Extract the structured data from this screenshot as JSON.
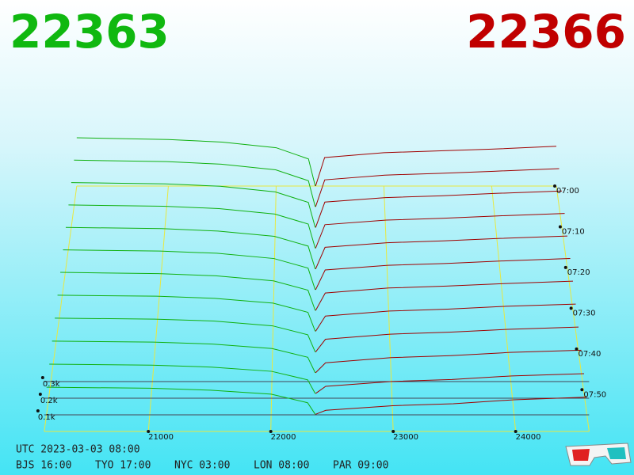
{
  "header": {
    "bid_price": 22363,
    "ask_price": 22366
  },
  "chart_data": {
    "type": "depth3d",
    "bid_color": "#10b010",
    "ask_color": "#a00000",
    "plane_color": "#e8e840",
    "xlim": [
      20150,
      24600
    ],
    "xticks": [
      21000,
      22000,
      23000,
      24000
    ],
    "yticks": [
      {
        "value": 100,
        "label": "0.1k"
      },
      {
        "value": 200,
        "label": "0.2k"
      },
      {
        "value": 300,
        "label": "0.3k"
      }
    ],
    "time_ticks": [
      "07:00",
      "07:10",
      "07:20",
      "07:30",
      "07:40",
      "07:50"
    ],
    "bid_prices": [
      20150,
      21000,
      21500,
      22000,
      22300,
      22363
    ],
    "ask_prices": [
      22366,
      22450,
      23000,
      23500,
      24000,
      24600
    ],
    "snapshots": [
      {
        "bid": [
          330,
          318,
          300,
          262,
          185,
          0
        ],
        "ask": [
          0,
          195,
          228,
          240,
          252,
          272
        ]
      },
      {
        "bid": [
          315,
          305,
          288,
          250,
          176,
          0
        ],
        "ask": [
          0,
          182,
          214,
          226,
          240,
          258
        ]
      },
      {
        "bid": [
          300,
          292,
          276,
          238,
          168,
          0
        ],
        "ask": [
          0,
          170,
          200,
          212,
          228,
          244
        ]
      },
      {
        "bid": [
          286,
          278,
          262,
          226,
          160,
          0
        ],
        "ask": [
          0,
          156,
          186,
          198,
          214,
          230
        ]
      },
      {
        "bid": [
          272,
          264,
          248,
          214,
          150,
          0
        ],
        "ask": [
          0,
          142,
          172,
          184,
          200,
          216
        ]
      },
      {
        "bid": [
          258,
          250,
          236,
          202,
          140,
          0
        ],
        "ask": [
          0,
          128,
          158,
          170,
          186,
          202
        ]
      },
      {
        "bid": [
          244,
          236,
          222,
          190,
          130,
          0
        ],
        "ask": [
          0,
          112,
          144,
          156,
          172,
          188
        ]
      },
      {
        "bid": [
          228,
          222,
          208,
          178,
          120,
          0
        ],
        "ask": [
          0,
          96,
          128,
          140,
          158,
          172
        ]
      },
      {
        "bid": [
          212,
          206,
          194,
          164,
          108,
          0
        ],
        "ask": [
          0,
          80,
          112,
          124,
          142,
          156
        ]
      },
      {
        "bid": [
          196,
          190,
          178,
          150,
          96,
          0
        ],
        "ask": [
          0,
          62,
          94,
          106,
          126,
          140
        ]
      },
      {
        "bid": [
          180,
          174,
          162,
          136,
          84,
          0
        ],
        "ask": [
          0,
          44,
          74,
          86,
          108,
          122
        ]
      },
      {
        "bid": [
          164,
          158,
          146,
          122,
          70,
          0
        ],
        "ask": [
          0,
          24,
          52,
          64,
          88,
          104
        ]
      }
    ]
  },
  "footer": {
    "utc": "UTC 2023-03-03 08:00",
    "zones": [
      "BJS 16:00",
      "TYO 17:00",
      "NYC 03:00",
      "LON 08:00",
      "PAR 09:00"
    ]
  }
}
